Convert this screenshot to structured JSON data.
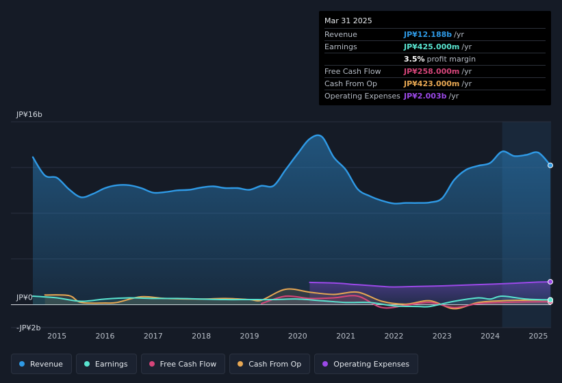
{
  "tooltip": {
    "date": "Mar 31 2025",
    "rows": [
      {
        "label": "Revenue",
        "value": "JP¥12.188b",
        "unit": "/yr",
        "color": "#2f9ae6"
      },
      {
        "label": "Earnings",
        "value": "JP¥425.000m",
        "unit": "/yr",
        "color": "#59e4d0"
      },
      {
        "label": "",
        "value": "3.5%",
        "unit": "profit margin",
        "color": "#ffffff"
      },
      {
        "label": "Free Cash Flow",
        "value": "JP¥258.000m",
        "unit": "/yr",
        "color": "#d6457a"
      },
      {
        "label": "Cash From Op",
        "value": "JP¥423.000m",
        "unit": "/yr",
        "color": "#e8a853"
      },
      {
        "label": "Operating Expenses",
        "value": "JP¥2.003b",
        "unit": "/yr",
        "color": "#9b49e8"
      }
    ]
  },
  "legend": [
    {
      "label": "Revenue",
      "color": "#2f9ae6"
    },
    {
      "label": "Earnings",
      "color": "#59e4d0"
    },
    {
      "label": "Free Cash Flow",
      "color": "#d6457a"
    },
    {
      "label": "Cash From Op",
      "color": "#e8a853"
    },
    {
      "label": "Operating Expenses",
      "color": "#9b49e8"
    }
  ],
  "chart_data": {
    "type": "line",
    "title": "",
    "xlabel": "",
    "ylabel": "",
    "ylim": [
      -2,
      16
    ],
    "y_tick_labels": [
      {
        "value": 16,
        "label": "JP¥16b"
      },
      {
        "value": 0,
        "label": "JP¥0"
      },
      {
        "value": -2,
        "label": "-JP¥2b"
      }
    ],
    "x_ticks": [
      2015,
      2016,
      2017,
      2018,
      2019,
      2020,
      2021,
      2022,
      2023,
      2024,
      2025
    ],
    "xlim": [
      2014.5,
      2025.25
    ],
    "highlight_range": [
      2024.25,
      2025.25
    ],
    "series": [
      {
        "name": "Revenue",
        "color": "#2f9ae6",
        "area": true,
        "points": [
          [
            2014.5,
            12.9
          ],
          [
            2014.75,
            11.3
          ],
          [
            2015.0,
            11.1
          ],
          [
            2015.25,
            10.1
          ],
          [
            2015.5,
            9.4
          ],
          [
            2015.75,
            9.7
          ],
          [
            2016.0,
            10.2
          ],
          [
            2016.25,
            10.45
          ],
          [
            2016.5,
            10.45
          ],
          [
            2016.75,
            10.2
          ],
          [
            2017.0,
            9.8
          ],
          [
            2017.25,
            9.85
          ],
          [
            2017.5,
            10.0
          ],
          [
            2017.75,
            10.05
          ],
          [
            2018.0,
            10.25
          ],
          [
            2018.25,
            10.35
          ],
          [
            2018.5,
            10.2
          ],
          [
            2018.75,
            10.2
          ],
          [
            2019.0,
            10.05
          ],
          [
            2019.25,
            10.4
          ],
          [
            2019.5,
            10.4
          ],
          [
            2019.75,
            11.8
          ],
          [
            2020.0,
            13.2
          ],
          [
            2020.25,
            14.5
          ],
          [
            2020.5,
            14.7
          ],
          [
            2020.75,
            12.9
          ],
          [
            2021.0,
            11.8
          ],
          [
            2021.25,
            10.1
          ],
          [
            2021.5,
            9.5
          ],
          [
            2021.75,
            9.1
          ],
          [
            2022.0,
            8.85
          ],
          [
            2022.25,
            8.9
          ],
          [
            2022.5,
            8.9
          ],
          [
            2022.75,
            8.95
          ],
          [
            2023.0,
            9.3
          ],
          [
            2023.25,
            10.9
          ],
          [
            2023.5,
            11.8
          ],
          [
            2023.75,
            12.15
          ],
          [
            2024.0,
            12.4
          ],
          [
            2024.25,
            13.4
          ],
          [
            2024.5,
            13.0
          ],
          [
            2024.75,
            13.1
          ],
          [
            2025.0,
            13.3
          ],
          [
            2025.25,
            12.188
          ]
        ]
      },
      {
        "name": "Operating Expenses",
        "color": "#9b49e8",
        "area": true,
        "points": [
          [
            2020.25,
            1.95
          ],
          [
            2020.75,
            1.9
          ],
          [
            2021.25,
            1.75
          ],
          [
            2021.75,
            1.6
          ],
          [
            2022.0,
            1.55
          ],
          [
            2022.5,
            1.6
          ],
          [
            2023.0,
            1.65
          ],
          [
            2023.5,
            1.72
          ],
          [
            2024.0,
            1.8
          ],
          [
            2024.5,
            1.88
          ],
          [
            2025.0,
            1.98
          ],
          [
            2025.25,
            2.003
          ]
        ]
      },
      {
        "name": "Cash From Op",
        "color": "#e8a853",
        "area": false,
        "points": [
          [
            2014.75,
            0.85
          ],
          [
            2015.25,
            0.8
          ],
          [
            2015.5,
            0.2
          ],
          [
            2016.0,
            0.15
          ],
          [
            2016.25,
            0.2
          ],
          [
            2016.75,
            0.7
          ],
          [
            2017.25,
            0.55
          ],
          [
            2018.0,
            0.5
          ],
          [
            2018.5,
            0.55
          ],
          [
            2019.0,
            0.45
          ],
          [
            2019.25,
            0.4
          ],
          [
            2019.75,
            1.35
          ],
          [
            2020.25,
            1.1
          ],
          [
            2020.75,
            0.9
          ],
          [
            2021.25,
            1.1
          ],
          [
            2021.75,
            0.3
          ],
          [
            2022.25,
            0.05
          ],
          [
            2022.75,
            0.35
          ],
          [
            2023.25,
            -0.35
          ],
          [
            2023.75,
            0.2
          ],
          [
            2024.25,
            0.35
          ],
          [
            2024.75,
            0.4
          ],
          [
            2025.25,
            0.423
          ]
        ]
      },
      {
        "name": "Free Cash Flow",
        "color": "#d6457a",
        "area": false,
        "points": [
          [
            2019.25,
            0.1
          ],
          [
            2019.75,
            0.75
          ],
          [
            2020.25,
            0.55
          ],
          [
            2020.75,
            0.6
          ],
          [
            2021.25,
            0.75
          ],
          [
            2021.75,
            -0.25
          ],
          [
            2022.25,
            -0.05
          ],
          [
            2022.75,
            0.2
          ],
          [
            2023.25,
            -0.25
          ],
          [
            2023.75,
            0.1
          ],
          [
            2024.25,
            0.2
          ],
          [
            2024.75,
            0.25
          ],
          [
            2025.25,
            0.258
          ]
        ]
      },
      {
        "name": "Earnings",
        "color": "#59e4d0",
        "area": false,
        "points": [
          [
            2014.5,
            0.75
          ],
          [
            2015.0,
            0.6
          ],
          [
            2015.5,
            0.3
          ],
          [
            2016.0,
            0.5
          ],
          [
            2016.5,
            0.6
          ],
          [
            2017.0,
            0.55
          ],
          [
            2017.5,
            0.55
          ],
          [
            2018.0,
            0.5
          ],
          [
            2018.5,
            0.45
          ],
          [
            2019.0,
            0.45
          ],
          [
            2019.5,
            0.45
          ],
          [
            2020.0,
            0.5
          ],
          [
            2020.5,
            0.35
          ],
          [
            2021.0,
            0.2
          ],
          [
            2021.5,
            0.2
          ],
          [
            2022.0,
            -0.1
          ],
          [
            2022.5,
            -0.15
          ],
          [
            2022.75,
            -0.15
          ],
          [
            2023.25,
            0.3
          ],
          [
            2023.75,
            0.6
          ],
          [
            2024.0,
            0.5
          ],
          [
            2024.25,
            0.75
          ],
          [
            2024.75,
            0.5
          ],
          [
            2025.25,
            0.425
          ]
        ]
      }
    ]
  }
}
